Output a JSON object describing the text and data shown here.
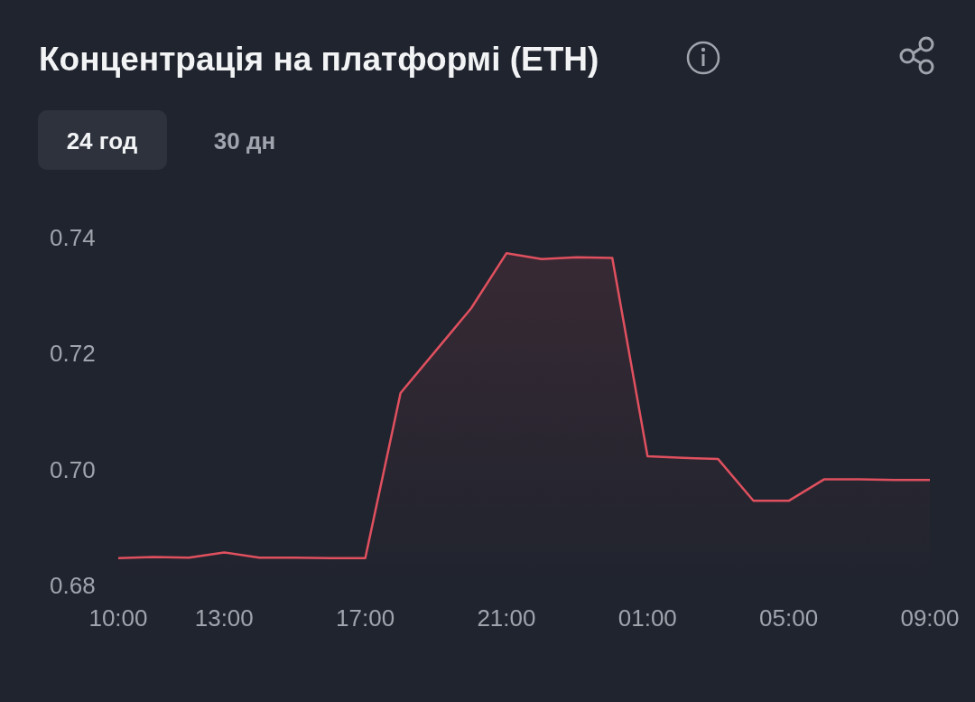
{
  "chart_data": {
    "type": "area",
    "title": "Концентрація на платформі (ETH)",
    "annotations": [
      "24 год",
      "30 дн"
    ],
    "categories": [
      "10:00",
      null,
      null,
      "13:00",
      null,
      null,
      null,
      "17:00",
      null,
      null,
      null,
      "21:00",
      null,
      null,
      null,
      "01:00",
      null,
      null,
      null,
      "05:00",
      null,
      null,
      null,
      "09:00"
    ],
    "series": [
      {
        "color": "#e0505f",
        "values": [
          0.6847,
          0.6849,
          0.6848,
          0.6857,
          0.6848,
          0.6848,
          0.6847,
          0.6847,
          0.7132,
          0.7205,
          0.7278,
          0.7373,
          0.7363,
          0.7366,
          0.7365,
          0.7023,
          0.702,
          0.7018,
          0.6946,
          0.6946,
          0.6983,
          0.6983,
          0.6982,
          0.6982
        ]
      }
    ],
    "ylim": [
      0.68,
      0.74
    ],
    "yticks": [
      {
        "value": 0.68,
        "label": "0.68"
      },
      {
        "value": 0.7,
        "label": "0.70"
      },
      {
        "value": 0.72,
        "label": "0.72"
      },
      {
        "value": 0.74,
        "label": "0.74"
      }
    ],
    "grid": false
  }
}
